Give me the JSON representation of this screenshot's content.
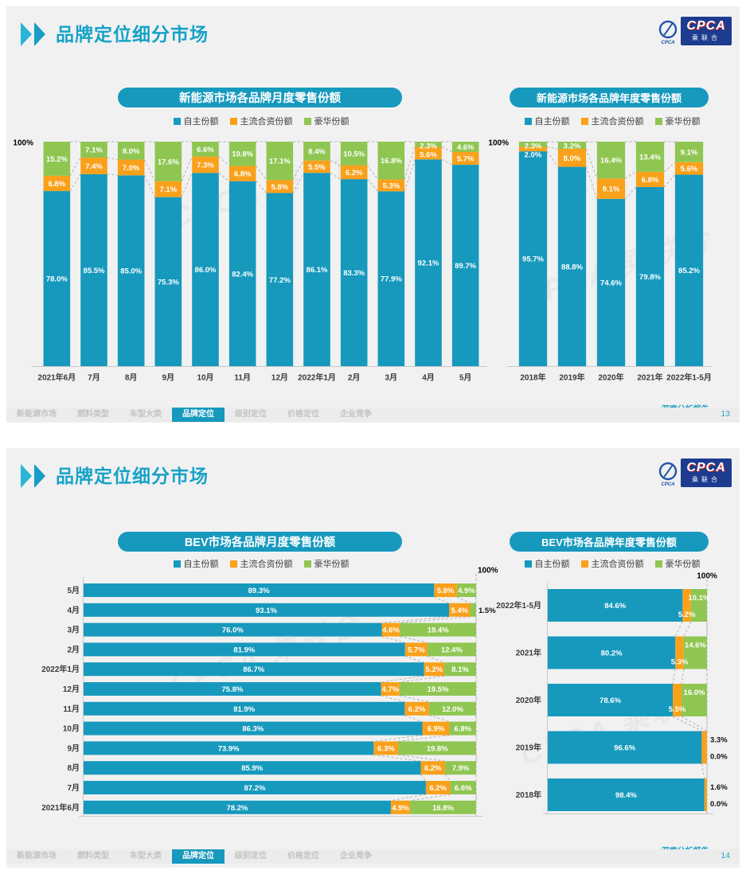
{
  "header": {
    "title": "品牌定位细分市场",
    "logo": {
      "emblem_text": "CPCA",
      "cpca_text": "CPCA",
      "sub_text": "乘联合"
    }
  },
  "footer": {
    "report_label": "深度分析报告",
    "page_numbers": [
      "13",
      "14"
    ],
    "tabs": [
      {
        "label": "新能源市场",
        "active": false
      },
      {
        "label": "燃料类型",
        "active": false
      },
      {
        "label": "车型大类",
        "active": false
      },
      {
        "label": "品牌定位",
        "active": true
      },
      {
        "label": "级别定位",
        "active": false
      },
      {
        "label": "价格定位",
        "active": false
      },
      {
        "label": "企业竞争",
        "active": false
      }
    ]
  },
  "colors": {
    "domestic": "#1699bd",
    "mainstream_jv": "#f9a11b",
    "luxury": "#8fc652",
    "accent": "#17a2c7"
  },
  "chart_data": [
    {
      "type": "bar",
      "stacked": true,
      "orientation": "vertical",
      "title": "新能源市场各品牌月度零售份额",
      "legend": [
        "自主份额",
        "主流合资份额",
        "豪华份额"
      ],
      "legend_position": "top",
      "axis_label": "100%",
      "ylim": [
        0,
        100
      ],
      "grid": false,
      "categories": [
        "2021年6月",
        "7月",
        "8月",
        "9月",
        "10月",
        "11月",
        "12月",
        "2022年1月",
        "2月",
        "3月",
        "4月",
        "5月"
      ],
      "series": [
        {
          "name": "自主份额",
          "color": "#1699bd",
          "values": [
            78.0,
            85.5,
            85.0,
            75.3,
            86.0,
            82.4,
            77.2,
            86.1,
            83.3,
            77.9,
            92.1,
            89.7
          ]
        },
        {
          "name": "主流合资份额",
          "color": "#f9a11b",
          "values": [
            6.8,
            7.4,
            7.0,
            7.1,
            7.3,
            6.8,
            5.8,
            5.5,
            6.2,
            5.3,
            5.6,
            5.7
          ]
        },
        {
          "name": "豪华份额",
          "color": "#8fc652",
          "values": [
            15.2,
            7.1,
            8.0,
            17.6,
            6.6,
            10.8,
            17.1,
            8.4,
            10.5,
            16.8,
            2.3,
            4.6
          ]
        }
      ]
    },
    {
      "type": "bar",
      "stacked": true,
      "orientation": "vertical",
      "title": "新能源市场各品牌年度零售份额",
      "legend": [
        "自主份额",
        "主流合资份额",
        "豪华份额"
      ],
      "legend_position": "top",
      "axis_label": "100%",
      "ylim": [
        0,
        100
      ],
      "grid": false,
      "categories": [
        "2018年",
        "2019年",
        "2020年",
        "2021年",
        "2022年1-5月"
      ],
      "series": [
        {
          "name": "自主份额",
          "color": "#1699bd",
          "values": [
            95.7,
            88.8,
            74.6,
            79.8,
            85.2
          ]
        },
        {
          "name": "主流合资份额",
          "color": "#f9a11b",
          "values": [
            2.0,
            8.0,
            9.1,
            6.8,
            5.6
          ]
        },
        {
          "name": "豪华份额",
          "color": "#8fc652",
          "values": [
            2.3,
            3.2,
            16.4,
            13.4,
            9.1
          ]
        }
      ]
    },
    {
      "type": "bar",
      "stacked": true,
      "orientation": "horizontal",
      "title": "BEV市场各品牌月度零售份额",
      "legend": [
        "自主份额",
        "主流合资份额",
        "豪华份额"
      ],
      "legend_position": "top",
      "axis_label": "100%",
      "xlim": [
        0,
        100
      ],
      "grid": false,
      "categories": [
        "5月",
        "4月",
        "3月",
        "2月",
        "2022年1月",
        "12月",
        "11月",
        "10月",
        "9月",
        "8月",
        "7月",
        "2021年6月"
      ],
      "series": [
        {
          "name": "自主份额",
          "color": "#1699bd",
          "values": [
            89.3,
            93.1,
            76.0,
            81.9,
            86.7,
            75.8,
            81.9,
            86.3,
            73.9,
            85.9,
            87.2,
            78.2
          ]
        },
        {
          "name": "主流合资份额",
          "color": "#f9a11b",
          "values": [
            5.8,
            5.4,
            4.6,
            5.7,
            5.2,
            4.7,
            6.2,
            6.9,
            6.3,
            6.2,
            6.2,
            4.9
          ]
        },
        {
          "name": "豪华份额",
          "color": "#8fc652",
          "values": [
            4.9,
            1.5,
            19.4,
            12.4,
            8.1,
            19.5,
            12.0,
            6.8,
            19.8,
            7.9,
            6.6,
            16.8
          ]
        }
      ]
    },
    {
      "type": "bar",
      "stacked": true,
      "orientation": "horizontal",
      "title": "BEV市场各品牌年度零售份额",
      "legend": [
        "自主份额",
        "主流合资份额",
        "豪华份额"
      ],
      "legend_position": "top",
      "axis_label": "100%",
      "xlim": [
        0,
        100
      ],
      "grid": false,
      "categories": [
        "2022年1-5月",
        "2021年",
        "2020年",
        "2019年",
        "2018年"
      ],
      "series": [
        {
          "name": "自主份额",
          "color": "#1699bd",
          "values": [
            84.6,
            80.2,
            78.6,
            96.6,
            98.4
          ]
        },
        {
          "name": "主流合资份额",
          "color": "#f9a11b",
          "values": [
            5.2,
            5.3,
            5.5,
            3.3,
            1.6
          ]
        },
        {
          "name": "豪华份额",
          "color": "#8fc652",
          "values": [
            10.1,
            14.6,
            16.0,
            0.0,
            0.0
          ]
        }
      ]
    }
  ]
}
